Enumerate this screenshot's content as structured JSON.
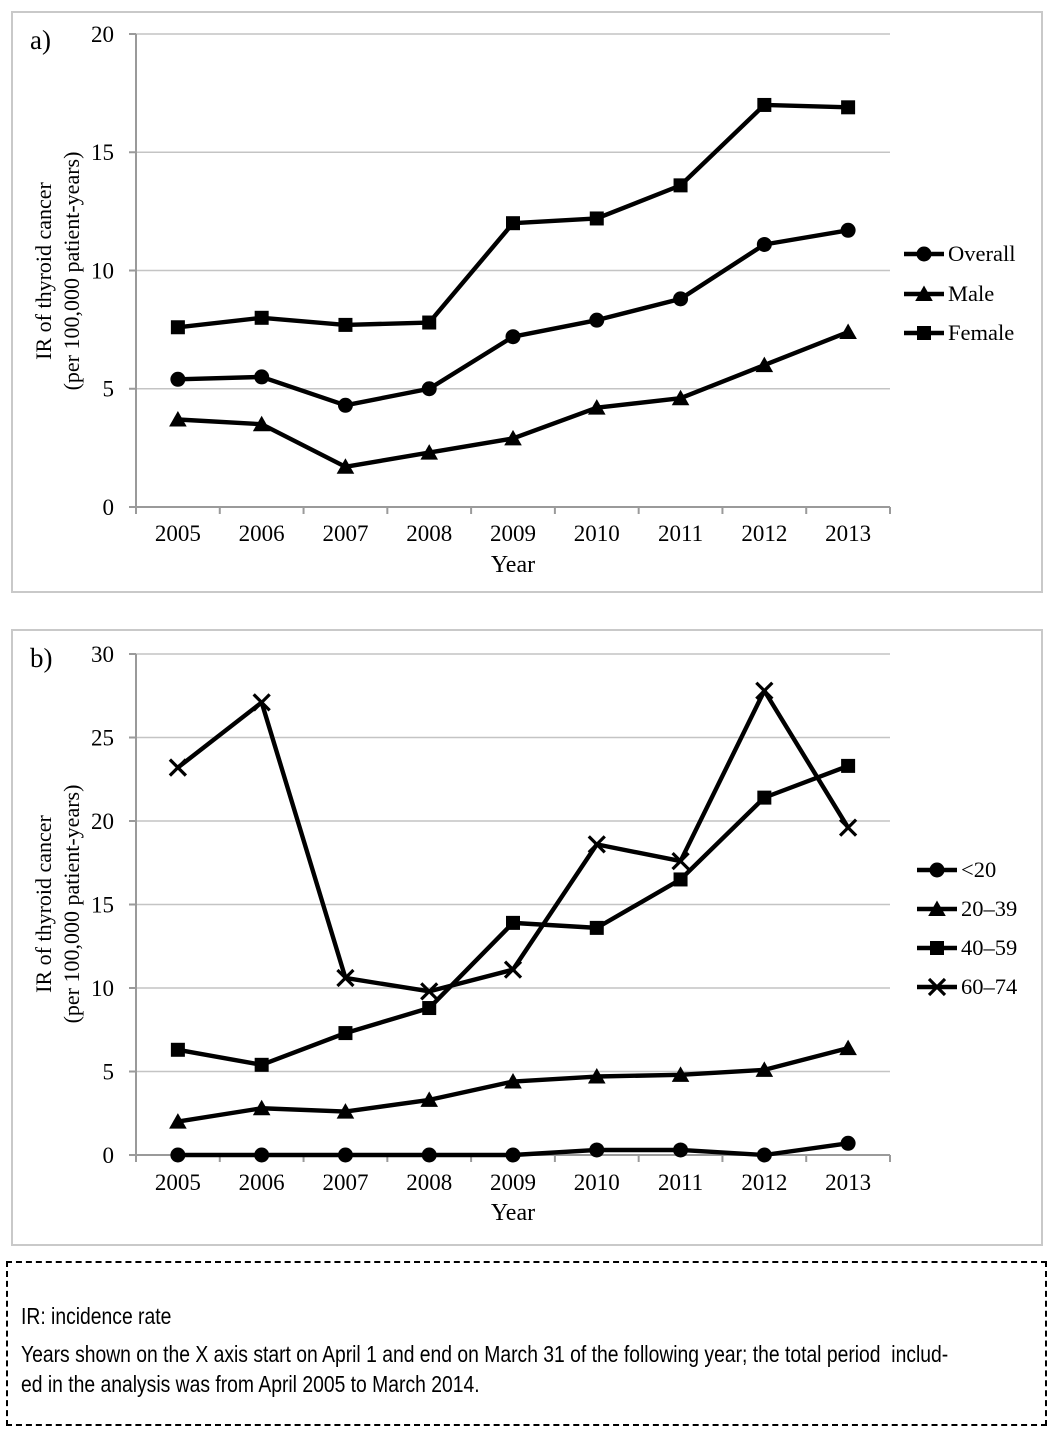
{
  "panels": {
    "a": {
      "label": "a)"
    },
    "b": {
      "label": "b)"
    }
  },
  "chart_data": [
    {
      "type": "line",
      "panel": "a",
      "categories": [
        "2005",
        "2006",
        "2007",
        "2008",
        "2009",
        "2010",
        "2011",
        "2012",
        "2013"
      ],
      "series": [
        {
          "name": "Overall",
          "marker": "circle",
          "values": [
            5.4,
            5.5,
            4.3,
            5.0,
            7.2,
            7.9,
            8.8,
            11.1,
            11.7
          ]
        },
        {
          "name": "Male",
          "marker": "triangle",
          "values": [
            3.7,
            3.5,
            1.7,
            2.3,
            2.9,
            4.2,
            4.6,
            6.0,
            7.4
          ]
        },
        {
          "name": "Female",
          "marker": "square",
          "values": [
            7.6,
            8.0,
            7.7,
            7.8,
            12.0,
            12.2,
            13.6,
            17.0,
            16.9
          ]
        }
      ],
      "xlabel": "Year",
      "ylabel_lines": [
        "IR of thyroid cancer",
        "(per 100,000 patient-years)"
      ],
      "ylim": [
        0,
        20
      ],
      "ytick_step": 5,
      "grid": true,
      "legend_position": "right",
      "line_color": "#000000",
      "grid_color": "#c4c4c4",
      "axis_color": "#9a9a9a"
    },
    {
      "type": "line",
      "panel": "b",
      "categories": [
        "2005",
        "2006",
        "2007",
        "2008",
        "2009",
        "2010",
        "2011",
        "2012",
        "2013"
      ],
      "series": [
        {
          "name": "<20",
          "marker": "circle",
          "values": [
            0,
            0,
            0,
            0,
            0,
            0.3,
            0.3,
            0,
            0.7
          ]
        },
        {
          "name": "20–39",
          "marker": "triangle",
          "values": [
            2.0,
            2.8,
            2.6,
            3.3,
            4.4,
            4.7,
            4.8,
            5.1,
            6.4
          ]
        },
        {
          "name": "40–59",
          "marker": "square",
          "values": [
            6.3,
            5.4,
            7.3,
            8.8,
            13.9,
            13.6,
            16.5,
            21.4,
            23.3
          ]
        },
        {
          "name": "60–74",
          "marker": "x",
          "values": [
            23.2,
            27.1,
            10.6,
            9.8,
            11.1,
            18.6,
            17.6,
            27.8,
            19.6
          ]
        }
      ],
      "xlabel": "Year",
      "ylabel_lines": [
        "IR of thyroid cancer",
        "(per 100,000 patient-years)"
      ],
      "ylim": [
        0,
        30
      ],
      "ytick_step": 5,
      "grid": true,
      "legend_position": "right",
      "line_color": "#000000",
      "grid_color": "#c4c4c4",
      "axis_color": "#9a9a9a"
    }
  ],
  "footnote": {
    "lines": [
      "IR: incidence rate",
      "Years shown on the X axis start on April 1 and end on March 31 of the following year; the total period  includ-",
      "ed in the analysis was from April 2005 to March 2014."
    ]
  }
}
